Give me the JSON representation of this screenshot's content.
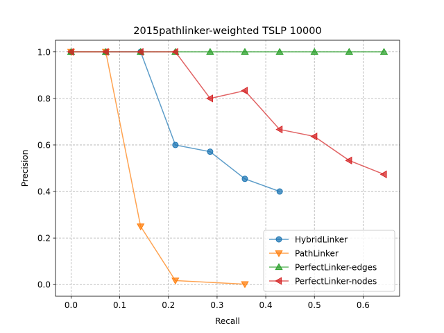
{
  "chart_data": {
    "type": "line",
    "title": "2015pathlinker-weighted TSLP 10000",
    "xlabel": "Recall",
    "ylabel": "Precision",
    "xlim": [
      -0.032,
      0.675
    ],
    "ylim": [
      -0.05,
      1.05
    ],
    "xticks": [
      0.0,
      0.1,
      0.2,
      0.3,
      0.4,
      0.5,
      0.6
    ],
    "xtick_labels": [
      "0.0",
      "0.1",
      "0.2",
      "0.3",
      "0.4",
      "0.5",
      "0.6"
    ],
    "yticks": [
      0.0,
      0.2,
      0.4,
      0.6,
      0.8,
      1.0
    ],
    "ytick_labels": [
      "0.0",
      "0.2",
      "0.4",
      "0.6",
      "0.8",
      "1.0"
    ],
    "grid": true,
    "grid_style": "dashed",
    "legend_position": "lower right",
    "series": [
      {
        "name": "HybridLinker",
        "color": "#1f77b4",
        "marker": "circle",
        "x": [
          0.0,
          0.0714,
          0.1429,
          0.2143,
          0.2857,
          0.3571,
          0.4286
        ],
        "y": [
          1.0,
          1.0,
          1.0,
          0.6,
          0.571,
          0.4545,
          0.4
        ]
      },
      {
        "name": "PathLinker",
        "color": "#ff7f0e",
        "marker": "triangle-down",
        "x": [
          0.0,
          0.0714,
          0.1429,
          0.2143,
          0.3571
        ],
        "y": [
          1.0,
          1.0,
          0.25,
          0.0175,
          0.002
        ]
      },
      {
        "name": "PerfectLinker-edges",
        "color": "#2ca02c",
        "marker": "triangle-up",
        "x": [
          0.0,
          0.0714,
          0.1429,
          0.2143,
          0.2857,
          0.3571,
          0.4286,
          0.5,
          0.5714,
          0.6429
        ],
        "y": [
          1.0,
          1.0,
          1.0,
          1.0,
          1.0,
          1.0,
          1.0,
          1.0,
          1.0,
          1.0
        ]
      },
      {
        "name": "PerfectLinker-nodes",
        "color": "#d62728",
        "marker": "triangle-left",
        "x": [
          0.0,
          0.0714,
          0.1429,
          0.2143,
          0.2857,
          0.3571,
          0.4286,
          0.5,
          0.5714,
          0.6429
        ],
        "y": [
          1.0,
          1.0,
          1.0,
          1.0,
          0.8,
          0.8333,
          0.6667,
          0.6364,
          0.5333,
          0.4737
        ]
      }
    ]
  }
}
